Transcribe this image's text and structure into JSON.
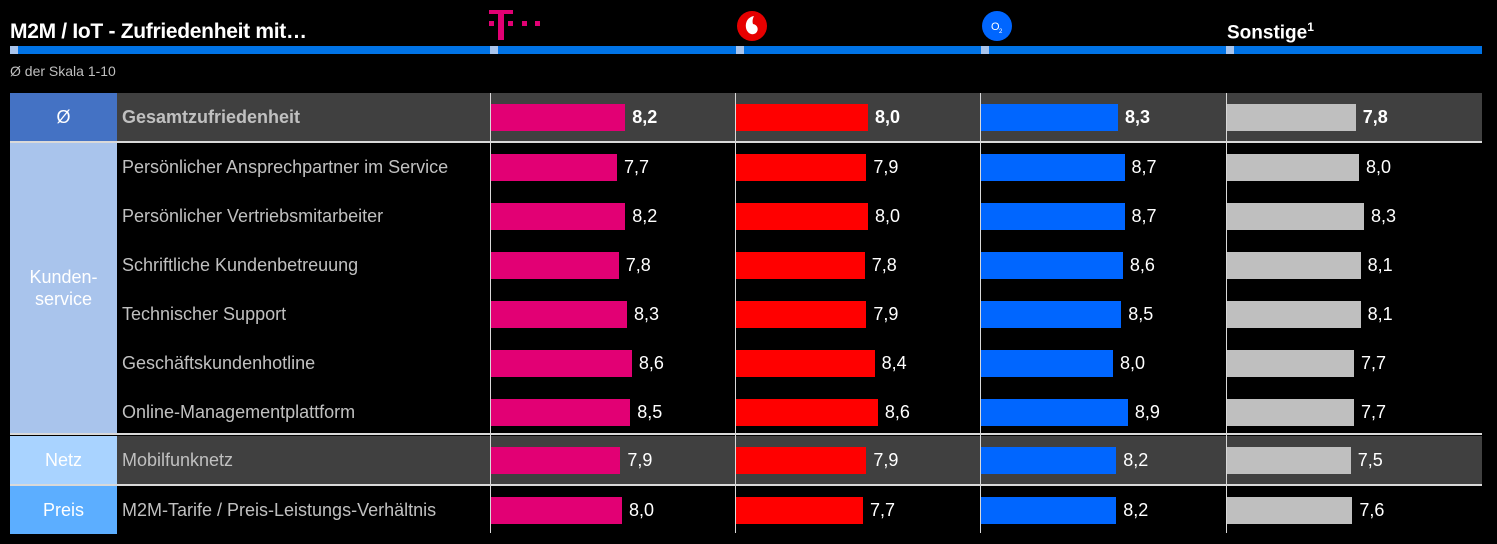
{
  "header": {
    "title": "M2M / IoT - Zufriedenheit mit…",
    "subtitle": "Ø der Skala 1-10",
    "providers": [
      {
        "name": "Telekom",
        "logo": "telekom-logo",
        "color": "#e20074"
      },
      {
        "name": "Vodafone",
        "logo": "vodafone-logo",
        "color": "#ff0000"
      },
      {
        "name": "O2",
        "logo": "o2-logo",
        "color": "#0066ff"
      },
      {
        "name": "Sonstige",
        "footnote": "1",
        "color": "#bfbfbf"
      }
    ]
  },
  "chart_data": {
    "type": "bar",
    "title": "M2M / IoT - Zufriedenheit mit…",
    "subtitle": "Ø der Skala 1-10",
    "xlim": [
      0,
      10
    ],
    "groups": [
      {
        "label": "Ø",
        "rows": [
          0
        ]
      },
      {
        "label": "Kunden-\nservice",
        "rows": [
          1,
          2,
          3,
          4,
          5,
          6
        ]
      },
      {
        "label": "Netz",
        "rows": [
          7
        ]
      },
      {
        "label": "Preis",
        "rows": [
          8
        ]
      }
    ],
    "categories": [
      "Gesamtzufriedenheit",
      "Persönlicher Ansprechpartner im Service",
      "Persönlicher Vertriebsmitarbeiter",
      "Schriftliche Kundenbetreuung",
      "Technischer Support",
      "Geschäftskundenhotline",
      "Online-Managementplattform",
      "Mobilfunknetz",
      "M2M-Tarife / Preis-Leistungs-Verhältnis"
    ],
    "series": [
      {
        "name": "Telekom",
        "values": [
          8.2,
          7.7,
          8.2,
          7.8,
          8.3,
          8.6,
          8.5,
          7.9,
          8.0
        ],
        "labels": [
          "8,2",
          "7,7",
          "8,2",
          "7,8",
          "8,3",
          "8,6",
          "8,5",
          "7,9",
          "8,0"
        ]
      },
      {
        "name": "Vodafone",
        "values": [
          8.0,
          7.9,
          8.0,
          7.8,
          7.9,
          8.4,
          8.6,
          7.9,
          7.7
        ],
        "labels": [
          "8,0",
          "7,9",
          "8,0",
          "7,8",
          "7,9",
          "8,4",
          "8,6",
          "7,9",
          "7,7"
        ]
      },
      {
        "name": "O2",
        "values": [
          8.3,
          8.7,
          8.7,
          8.6,
          8.5,
          8.0,
          8.9,
          8.2,
          8.2
        ],
        "labels": [
          "8,3",
          "8,7",
          "8,7",
          "8,6",
          "8,5",
          "8,0",
          "8,9",
          "8,2",
          "8,2"
        ]
      },
      {
        "name": "Sonstige",
        "values": [
          7.8,
          8.0,
          8.3,
          8.1,
          8.1,
          7.7,
          7.7,
          7.5,
          7.6
        ],
        "labels": [
          "7,8",
          "8,0",
          "8,3",
          "8,1",
          "8,1",
          "7,7",
          "7,7",
          "7,5",
          "7,6"
        ]
      }
    ]
  }
}
